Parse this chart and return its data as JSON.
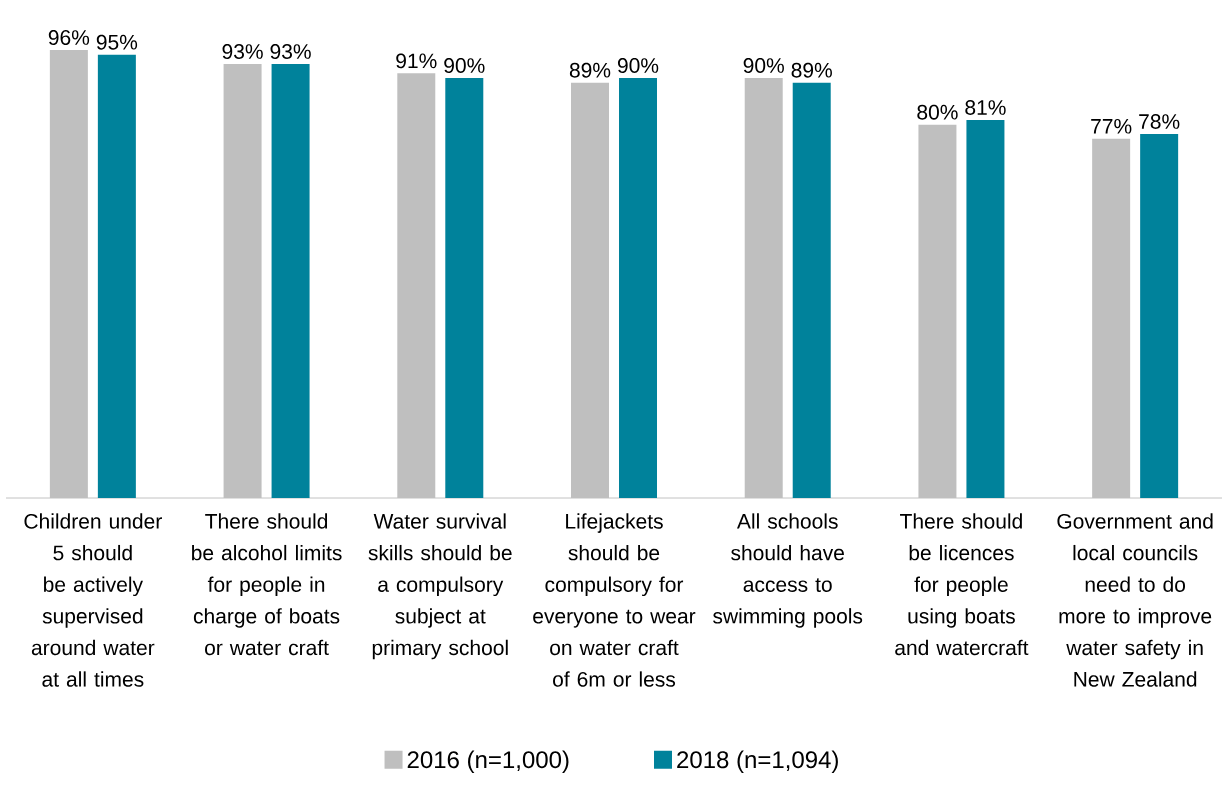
{
  "chart_data": {
    "type": "bar",
    "categories": [
      "Children under 5 should be actively supervised around water at all times",
      "There should be alcohol limits for people in charge of boats or water craft",
      "Water survival skills should be a compulsory subject at primary school",
      "Lifejackets should be compulsory for everyone to wear on water craft of 6m or less",
      "All schools should have access to swimming pools",
      "There should be licences for people using boats and watercraft",
      "Government and local councils need to do more to improve water safety in New Zealand"
    ],
    "series": [
      {
        "name": "2016 (n=1,000)",
        "color": "#bfbfbf",
        "values": [
          96,
          93,
          91,
          89,
          90,
          80,
          77
        ],
        "value_labels": [
          "96%",
          "93%",
          "91%",
          "89%",
          "90%",
          "80%",
          "77%"
        ]
      },
      {
        "name": "2018 (n=1,094)",
        "color": "#00829b",
        "values": [
          95,
          93,
          90,
          90,
          89,
          81,
          78
        ],
        "value_labels": [
          "95%",
          "93%",
          "90%",
          "90%",
          "89%",
          "81%",
          "78%"
        ]
      }
    ],
    "legend": "bottom"
  }
}
